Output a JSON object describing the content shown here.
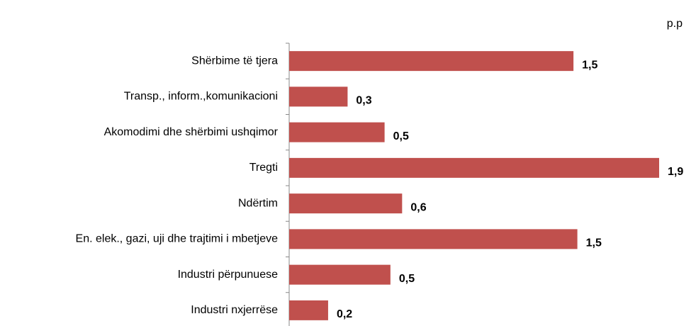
{
  "chart_data": {
    "type": "barh",
    "unit": "p.p",
    "categories": [
      "Shërbime të tjera",
      "Transp., inform.,komunikacioni",
      "Akomodimi dhe shërbimi ushqimor",
      "Tregti",
      "Ndërtim",
      "En. elek., gazi, uji dhe trajtimi i mbetjeve",
      "Industri përpunuese",
      "Industri nxjerrëse"
    ],
    "values": [
      1.46,
      0.3,
      0.49,
      1.9,
      0.58,
      1.48,
      0.52,
      0.2
    ],
    "value_labels": [
      "1,5",
      "0,3",
      "0,5",
      "1,9",
      "0,6",
      "1,5",
      "0,5",
      "0,2"
    ],
    "color": "#c0504d"
  }
}
